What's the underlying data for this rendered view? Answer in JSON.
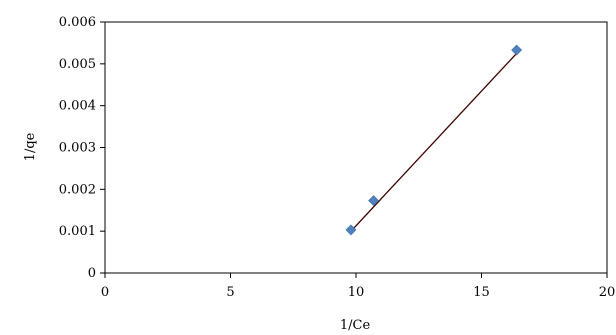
{
  "chart_data": {
    "type": "scatter",
    "title": "",
    "xlabel": "1/Ce",
    "ylabel": "1/qe",
    "xlim": [
      0,
      20
    ],
    "ylim": [
      0,
      0.006
    ],
    "xticks": [
      "0",
      "5",
      "10",
      "15",
      "20"
    ],
    "yticks": [
      "0",
      "0.001",
      "0.002",
      "0.003",
      "0.004",
      "0.005",
      "0.006"
    ],
    "grid": false,
    "legend": "none",
    "series": [
      {
        "points": [
          {
            "x": 9.8,
            "y": 0.00103
          },
          {
            "x": 10.7,
            "y": 0.00173
          },
          {
            "x": 16.4,
            "y": 0.00533
          }
        ],
        "marker": "diamond",
        "color": "#4F81BD"
      }
    ],
    "trendline": {
      "type": "linear",
      "x": [
        9.8,
        16.4
      ],
      "y": [
        0.001,
        0.00525
      ],
      "color": "#3d0000"
    }
  }
}
